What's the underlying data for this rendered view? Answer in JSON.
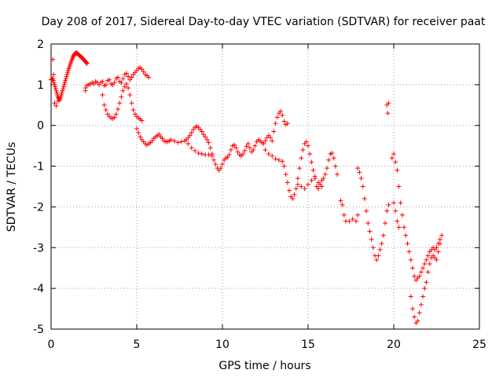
{
  "chart_data": {
    "type": "scatter",
    "title": "Day 208 of 2017, Sidereal Day-to-day VTEC variation (SDTVAR) for receiver paat",
    "xlabel": "GPS time / hours",
    "ylabel": "SDTVAR / TECUs",
    "xlim": [
      0,
      25
    ],
    "ylim": [
      -5,
      2
    ],
    "xticks": [
      0,
      5,
      10,
      15,
      20,
      25
    ],
    "yticks": [
      -5,
      -4,
      -3,
      -2,
      -1,
      0,
      1,
      2
    ],
    "grid": true,
    "marker": "plus",
    "marker_color": "#ff0000",
    "series": [
      {
        "name": "paat",
        "trace": [
          [
            0.0,
            1.12
          ],
          [
            0.1,
            1.15
          ],
          [
            0.2,
            1.0
          ],
          [
            0.3,
            0.85
          ],
          [
            0.4,
            0.7
          ],
          [
            0.5,
            0.62
          ],
          [
            0.6,
            0.75
          ],
          [
            0.7,
            0.9
          ],
          [
            0.8,
            1.05
          ],
          [
            0.9,
            1.2
          ],
          [
            1.0,
            1.35
          ],
          [
            1.1,
            1.48
          ],
          [
            1.2,
            1.6
          ],
          [
            1.3,
            1.7
          ],
          [
            1.4,
            1.77
          ],
          [
            1.5,
            1.78
          ],
          [
            1.6,
            1.74
          ],
          [
            1.7,
            1.7
          ],
          [
            1.8,
            1.67
          ],
          [
            1.9,
            1.62
          ],
          [
            2.0,
            1.57
          ],
          [
            2.1,
            1.52
          ]
        ],
        "points": [
          [
            0.1,
            1.62
          ],
          [
            0.15,
            1.25
          ],
          [
            0.2,
            0.55
          ],
          [
            0.3,
            0.48
          ],
          [
            0.4,
            0.6
          ],
          [
            2.0,
            0.85
          ],
          [
            2.0,
            0.92
          ],
          [
            2.1,
            0.98
          ],
          [
            2.2,
            1.0
          ],
          [
            2.3,
            1.02
          ],
          [
            2.4,
            1.05
          ],
          [
            2.5,
            1.02
          ],
          [
            2.6,
            1.08
          ],
          [
            2.7,
            1.05
          ],
          [
            2.8,
            1.0
          ],
          [
            2.9,
            1.05
          ],
          [
            3.0,
            1.08
          ],
          [
            3.1,
            0.98
          ],
          [
            3.2,
            1.0
          ],
          [
            3.3,
            1.1
          ],
          [
            3.4,
            1.12
          ],
          [
            3.5,
            1.02
          ],
          [
            3.6,
            1.0
          ],
          [
            3.7,
            1.05
          ],
          [
            3.8,
            1.15
          ],
          [
            3.9,
            1.18
          ],
          [
            4.0,
            1.08
          ],
          [
            4.1,
            1.05
          ],
          [
            4.2,
            1.15
          ],
          [
            4.3,
            1.25
          ],
          [
            4.4,
            1.28
          ],
          [
            4.5,
            1.2
          ],
          [
            4.6,
            1.12
          ],
          [
            4.7,
            1.18
          ],
          [
            4.8,
            1.25
          ],
          [
            4.9,
            1.3
          ],
          [
            5.0,
            1.35
          ],
          [
            5.1,
            1.4
          ],
          [
            5.2,
            1.42
          ],
          [
            5.3,
            1.38
          ],
          [
            5.4,
            1.32
          ],
          [
            5.5,
            1.25
          ],
          [
            5.6,
            1.22
          ],
          [
            5.7,
            1.18
          ],
          [
            3.0,
            0.75
          ],
          [
            3.1,
            0.5
          ],
          [
            3.2,
            0.38
          ],
          [
            3.3,
            0.28
          ],
          [
            3.4,
            0.22
          ],
          [
            3.5,
            0.18
          ],
          [
            3.6,
            0.17
          ],
          [
            3.7,
            0.2
          ],
          [
            3.8,
            0.28
          ],
          [
            3.9,
            0.4
          ],
          [
            4.0,
            0.55
          ],
          [
            4.1,
            0.7
          ],
          [
            4.2,
            0.85
          ],
          [
            4.3,
            0.95
          ],
          [
            4.4,
            1.02
          ],
          [
            4.5,
            0.92
          ],
          [
            4.6,
            0.75
          ],
          [
            4.7,
            0.55
          ],
          [
            4.8,
            0.38
          ],
          [
            4.9,
            0.28
          ],
          [
            5.0,
            0.22
          ],
          [
            5.1,
            0.18
          ],
          [
            5.2,
            0.15
          ],
          [
            5.3,
            0.12
          ],
          [
            5.0,
            -0.08
          ],
          [
            5.1,
            -0.18
          ],
          [
            5.2,
            -0.28
          ],
          [
            5.3,
            -0.35
          ],
          [
            5.4,
            -0.4
          ],
          [
            5.5,
            -0.45
          ],
          [
            5.6,
            -0.48
          ],
          [
            5.7,
            -0.45
          ],
          [
            5.8,
            -0.42
          ],
          [
            5.9,
            -0.38
          ],
          [
            6.0,
            -0.32
          ],
          [
            6.1,
            -0.28
          ],
          [
            6.2,
            -0.25
          ],
          [
            6.3,
            -0.22
          ],
          [
            6.4,
            -0.28
          ],
          [
            6.5,
            -0.32
          ],
          [
            6.6,
            -0.38
          ],
          [
            6.7,
            -0.4
          ],
          [
            6.8,
            -0.4
          ],
          [
            6.9,
            -0.38
          ],
          [
            7.0,
            -0.35
          ],
          [
            7.2,
            -0.38
          ],
          [
            7.4,
            -0.42
          ],
          [
            7.6,
            -0.4
          ],
          [
            7.8,
            -0.38
          ],
          [
            7.9,
            -0.35
          ],
          [
            8.0,
            -0.3
          ],
          [
            8.1,
            -0.25
          ],
          [
            8.2,
            -0.18
          ],
          [
            8.3,
            -0.1
          ],
          [
            8.4,
            -0.05
          ],
          [
            8.5,
            -0.02
          ],
          [
            8.6,
            -0.05
          ],
          [
            8.7,
            -0.1
          ],
          [
            8.8,
            -0.15
          ],
          [
            8.9,
            -0.22
          ],
          [
            9.0,
            -0.28
          ],
          [
            9.1,
            -0.35
          ],
          [
            9.2,
            -0.42
          ],
          [
            9.3,
            -0.55
          ],
          [
            9.4,
            -0.7
          ],
          [
            8.0,
            -0.45
          ],
          [
            8.2,
            -0.55
          ],
          [
            8.4,
            -0.62
          ],
          [
            8.6,
            -0.68
          ],
          [
            8.8,
            -0.7
          ],
          [
            9.0,
            -0.72
          ],
          [
            9.2,
            -0.72
          ],
          [
            9.4,
            -0.75
          ],
          [
            9.5,
            -0.85
          ],
          [
            9.6,
            -0.95
          ],
          [
            9.7,
            -1.05
          ],
          [
            9.8,
            -1.1
          ],
          [
            9.9,
            -1.05
          ],
          [
            10.0,
            -0.95
          ],
          [
            10.1,
            -0.85
          ],
          [
            10.2,
            -0.8
          ],
          [
            10.3,
            -0.78
          ],
          [
            10.4,
            -0.72
          ],
          [
            10.5,
            -0.6
          ],
          [
            10.6,
            -0.5
          ],
          [
            10.7,
            -0.48
          ],
          [
            10.8,
            -0.55
          ],
          [
            10.9,
            -0.65
          ],
          [
            11.0,
            -0.72
          ],
          [
            11.1,
            -0.75
          ],
          [
            11.2,
            -0.7
          ],
          [
            11.3,
            -0.62
          ],
          [
            11.4,
            -0.52
          ],
          [
            11.5,
            -0.45
          ],
          [
            11.6,
            -0.55
          ],
          [
            11.7,
            -0.65
          ],
          [
            11.8,
            -0.6
          ],
          [
            11.9,
            -0.5
          ],
          [
            12.0,
            -0.4
          ],
          [
            12.1,
            -0.35
          ],
          [
            12.2,
            -0.38
          ],
          [
            12.3,
            -0.42
          ],
          [
            12.4,
            -0.45
          ],
          [
            12.5,
            -0.38
          ],
          [
            12.6,
            -0.3
          ],
          [
            12.7,
            -0.25
          ],
          [
            12.8,
            -0.3
          ],
          [
            12.9,
            -0.38
          ],
          [
            13.0,
            -0.15
          ],
          [
            13.1,
            0.05
          ],
          [
            13.2,
            0.2
          ],
          [
            13.3,
            0.3
          ],
          [
            13.4,
            0.35
          ],
          [
            13.5,
            0.25
          ],
          [
            13.6,
            0.1
          ],
          [
            13.7,
            0.02
          ],
          [
            13.8,
            0.05
          ],
          [
            12.5,
            -0.6
          ],
          [
            12.7,
            -0.7
          ],
          [
            12.9,
            -0.75
          ],
          [
            13.1,
            -0.82
          ],
          [
            13.3,
            -0.85
          ],
          [
            13.5,
            -0.88
          ],
          [
            13.6,
            -1.0
          ],
          [
            13.7,
            -1.2
          ],
          [
            13.8,
            -1.4
          ],
          [
            13.9,
            -1.6
          ],
          [
            14.0,
            -1.75
          ],
          [
            14.1,
            -1.8
          ],
          [
            14.2,
            -1.7
          ],
          [
            14.3,
            -1.55
          ],
          [
            14.4,
            -1.3
          ],
          [
            14.5,
            -1.05
          ],
          [
            14.6,
            -0.8
          ],
          [
            14.7,
            -0.6
          ],
          [
            14.8,
            -0.45
          ],
          [
            14.9,
            -0.4
          ],
          [
            15.0,
            -0.5
          ],
          [
            15.1,
            -0.7
          ],
          [
            15.2,
            -0.9
          ],
          [
            15.3,
            -1.1
          ],
          [
            15.4,
            -1.3
          ],
          [
            15.5,
            -1.5
          ],
          [
            15.6,
            -1.55
          ],
          [
            15.7,
            -1.45
          ],
          [
            15.8,
            -1.35
          ],
          [
            15.9,
            -1.3
          ],
          [
            16.0,
            -1.2
          ],
          [
            16.1,
            -1.05
          ],
          [
            16.2,
            -0.85
          ],
          [
            16.3,
            -0.7
          ],
          [
            16.4,
            -0.68
          ],
          [
            16.5,
            -0.8
          ],
          [
            16.6,
            -1.0
          ],
          [
            16.7,
            -1.2
          ],
          [
            14.4,
            -1.45
          ],
          [
            14.6,
            -1.5
          ],
          [
            14.8,
            -1.55
          ],
          [
            15.0,
            -1.45
          ],
          [
            15.2,
            -1.35
          ],
          [
            15.4,
            -1.25
          ],
          [
            15.6,
            -1.4
          ],
          [
            15.8,
            -1.5
          ],
          [
            16.9,
            -1.85
          ],
          [
            17.0,
            -1.95
          ],
          [
            17.1,
            -2.2
          ],
          [
            17.2,
            -2.35
          ],
          [
            17.4,
            -2.35
          ],
          [
            17.6,
            -2.3
          ],
          [
            17.8,
            -2.35
          ],
          [
            17.9,
            -2.2
          ],
          [
            17.9,
            -1.05
          ],
          [
            18.0,
            -1.15
          ],
          [
            18.1,
            -1.3
          ],
          [
            18.2,
            -1.5
          ],
          [
            18.3,
            -1.8
          ],
          [
            18.4,
            -2.1
          ],
          [
            18.5,
            -2.4
          ],
          [
            18.6,
            -2.6
          ],
          [
            18.7,
            -2.8
          ],
          [
            18.8,
            -3.0
          ],
          [
            18.9,
            -3.2
          ],
          [
            19.0,
            -3.3
          ],
          [
            19.1,
            -3.2
          ],
          [
            19.2,
            -3.05
          ],
          [
            19.3,
            -2.9
          ],
          [
            19.4,
            -2.7
          ],
          [
            19.5,
            -2.4
          ],
          [
            19.6,
            -2.1
          ],
          [
            19.7,
            -1.95
          ],
          [
            19.6,
            0.5
          ],
          [
            19.7,
            0.55
          ],
          [
            19.65,
            0.3
          ],
          [
            19.9,
            -0.8
          ],
          [
            20.0,
            -0.7
          ],
          [
            20.1,
            -0.9
          ],
          [
            20.2,
            -1.1
          ],
          [
            20.3,
            -1.5
          ],
          [
            20.4,
            -1.9
          ],
          [
            20.5,
            -2.2
          ],
          [
            20.6,
            -2.5
          ],
          [
            20.7,
            -2.7
          ],
          [
            20.8,
            -2.9
          ],
          [
            20.9,
            -3.1
          ],
          [
            21.0,
            -3.3
          ],
          [
            21.1,
            -3.5
          ],
          [
            21.2,
            -3.7
          ],
          [
            21.3,
            -3.8
          ],
          [
            21.4,
            -3.75
          ],
          [
            21.5,
            -3.7
          ],
          [
            21.6,
            -3.6
          ],
          [
            21.7,
            -3.5
          ],
          [
            21.8,
            -3.4
          ],
          [
            21.9,
            -3.3
          ],
          [
            22.0,
            -3.2
          ],
          [
            22.1,
            -3.1
          ],
          [
            22.2,
            -3.05
          ],
          [
            22.3,
            -3.0
          ],
          [
            22.4,
            -3.05
          ],
          [
            22.5,
            -3.0
          ],
          [
            22.6,
            -2.9
          ],
          [
            22.7,
            -2.8
          ],
          [
            22.8,
            -2.7
          ],
          [
            20.0,
            -1.9
          ],
          [
            20.1,
            -2.1
          ],
          [
            20.2,
            -2.35
          ],
          [
            20.3,
            -2.5
          ],
          [
            21.0,
            -4.2
          ],
          [
            21.1,
            -4.5
          ],
          [
            21.2,
            -4.7
          ],
          [
            21.3,
            -4.85
          ],
          [
            21.4,
            -4.8
          ],
          [
            21.5,
            -4.6
          ],
          [
            21.6,
            -4.4
          ],
          [
            21.7,
            -4.2
          ],
          [
            21.8,
            -4.0
          ],
          [
            21.9,
            -3.85
          ],
          [
            22.0,
            -3.6
          ],
          [
            22.1,
            -3.4
          ],
          [
            22.2,
            -3.25
          ],
          [
            22.3,
            -3.2
          ],
          [
            22.4,
            -3.25
          ],
          [
            22.5,
            -3.3
          ],
          [
            22.6,
            -3.1
          ],
          [
            22.7,
            -2.9
          ]
        ]
      }
    ]
  }
}
